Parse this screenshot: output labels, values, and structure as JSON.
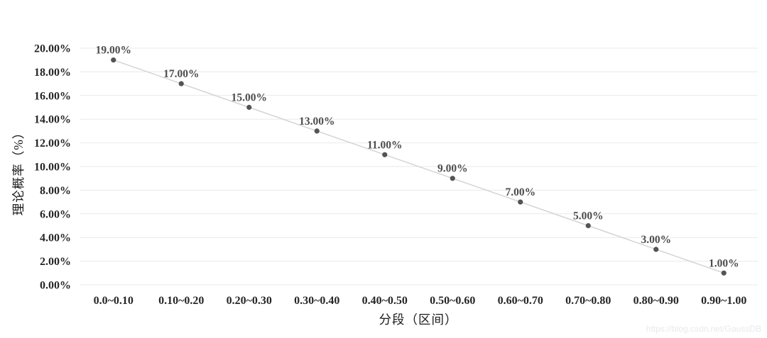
{
  "chart_data": {
    "type": "line",
    "title": "",
    "categories": [
      "0.0~0.10",
      "0.10~0.20",
      "0.20~0.30",
      "0.30~0.40",
      "0.40~0.50",
      "0.50~0.60",
      "0.60~0.70",
      "0.70~0.80",
      "0.80~0.90",
      "0.90~1.00"
    ],
    "values": [
      19,
      17,
      15,
      13,
      11,
      9,
      7,
      5,
      3,
      1
    ],
    "data_labels": [
      "19.00%",
      "17.00%",
      "15.00%",
      "13.00%",
      "11.00%",
      "9.00%",
      "7.00%",
      "5.00%",
      "3.00%",
      "1.00%"
    ],
    "xlabel": "分段（区间）",
    "ylabel": "理论概率（%）",
    "ylim": [
      0,
      20
    ],
    "y_tick_step": 2,
    "y_tick_labels": [
      "0.00%",
      "2.00%",
      "4.00%",
      "6.00%",
      "8.00%",
      "10.00%",
      "12.00%",
      "14.00%",
      "16.00%",
      "18.00%",
      "20.00%"
    ],
    "grid": true,
    "legend": "none",
    "colors": {
      "line": "#d4d4d4",
      "marker": "#545454",
      "gridline": "#e9e9e9",
      "data_label": "#4d4d4d",
      "tick_label": "#262626"
    }
  },
  "watermark": {
    "text": "https://blog.csdn.net/GaussDB",
    "color": "#e7e9ec"
  }
}
